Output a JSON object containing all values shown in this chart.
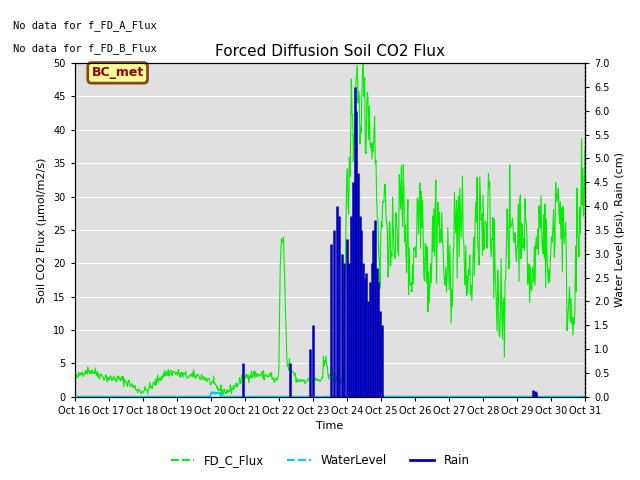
{
  "title": "Forced Diffusion Soil CO2 Flux",
  "xlabel": "Time",
  "ylabel_left": "Soil CO2 Flux (μmol/m2/s)",
  "ylabel_right": "Water Level (psi), Rain (cm)",
  "no_data_text": [
    "No data for f_FD_A_Flux",
    "No data for f_FD_B_Flux"
  ],
  "bc_met_label": "BC_met",
  "legend_entries": [
    "FD_C_Flux",
    "WaterLevel",
    "Rain"
  ],
  "legend_colors": [
    "#00ee00",
    "#00ccff",
    "#0000bb"
  ],
  "flux_color": "#00ee00",
  "water_color": "#00ccff",
  "rain_color": "#0000bb",
  "bg_color": "#e0e0e0",
  "ylim_left": [
    0,
    50
  ],
  "ylim_right": [
    0,
    7.0
  ],
  "yticks_left": [
    0,
    5,
    10,
    15,
    20,
    25,
    30,
    35,
    40,
    45,
    50
  ],
  "yticks_right": [
    0.0,
    0.5,
    1.0,
    1.5,
    2.0,
    2.5,
    3.0,
    3.5,
    4.0,
    4.5,
    5.0,
    5.5,
    6.0,
    6.5,
    7.0
  ],
  "xtick_labels": [
    "Oct 16",
    "Oct 17",
    "Oct 18",
    "Oct 19",
    "Oct 20",
    "Oct 21",
    "Oct 22",
    "Oct 23",
    "Oct 24",
    "Oct 25",
    "Oct 26",
    "Oct 27",
    "Oct 28",
    "Oct 29",
    "Oct 30",
    "Oct 31"
  ],
  "xtick_positions": [
    0,
    1,
    2,
    3,
    4,
    5,
    6,
    7,
    8,
    9,
    10,
    11,
    12,
    13,
    14,
    15
  ]
}
